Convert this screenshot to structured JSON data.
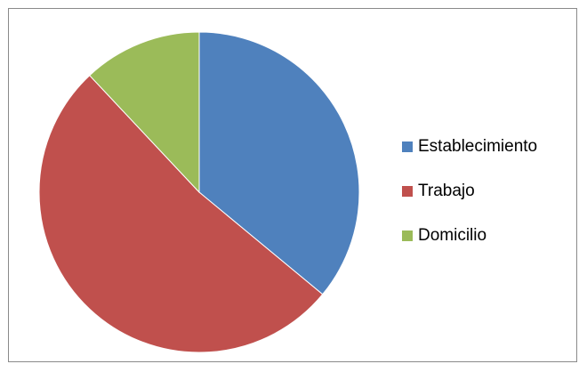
{
  "chart_data": {
    "type": "pie",
    "title": "",
    "start_angle_deg": 0,
    "direction": "clockwise",
    "legend_position": "right",
    "slices": [
      {
        "label": "Establecimiento",
        "value": 36,
        "color": "#4f81bd"
      },
      {
        "label": "Trabajo",
        "value": 52,
        "color": "#c0504d"
      },
      {
        "label": "Domicilio",
        "value": 12,
        "color": "#9bbb59"
      }
    ]
  }
}
